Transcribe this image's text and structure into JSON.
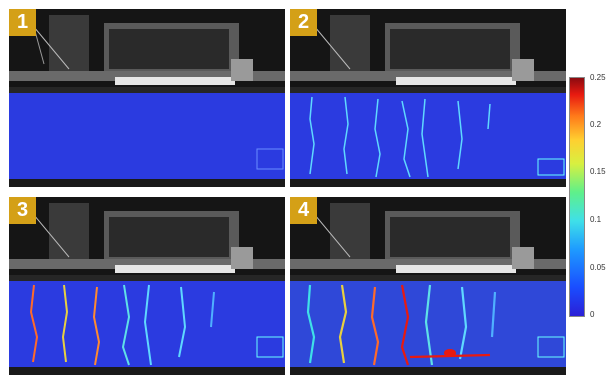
{
  "panels": [
    {
      "id": 1,
      "label": "1"
    },
    {
      "id": 2,
      "label": "2"
    },
    {
      "id": 3,
      "label": "3"
    },
    {
      "id": 4,
      "label": "4"
    }
  ],
  "colorbar": {
    "ticks": [
      "0.25",
      "0.2",
      "0.15",
      "0.1",
      "0.05",
      "0"
    ],
    "tick_values": [
      0.25,
      0.2,
      0.15,
      0.1,
      0.05,
      0
    ],
    "max": 0.25,
    "min": 0,
    "colors": [
      "#2b1fd6",
      "#1e9bff",
      "#3fe0e8",
      "#5ff08a",
      "#d8f040",
      "#ff7a1a",
      "#e81a10",
      "#8b0a10"
    ]
  },
  "colors": {
    "badge": "#d4a017",
    "beam": "#2b3be0",
    "background": "#0d0d0d"
  }
}
